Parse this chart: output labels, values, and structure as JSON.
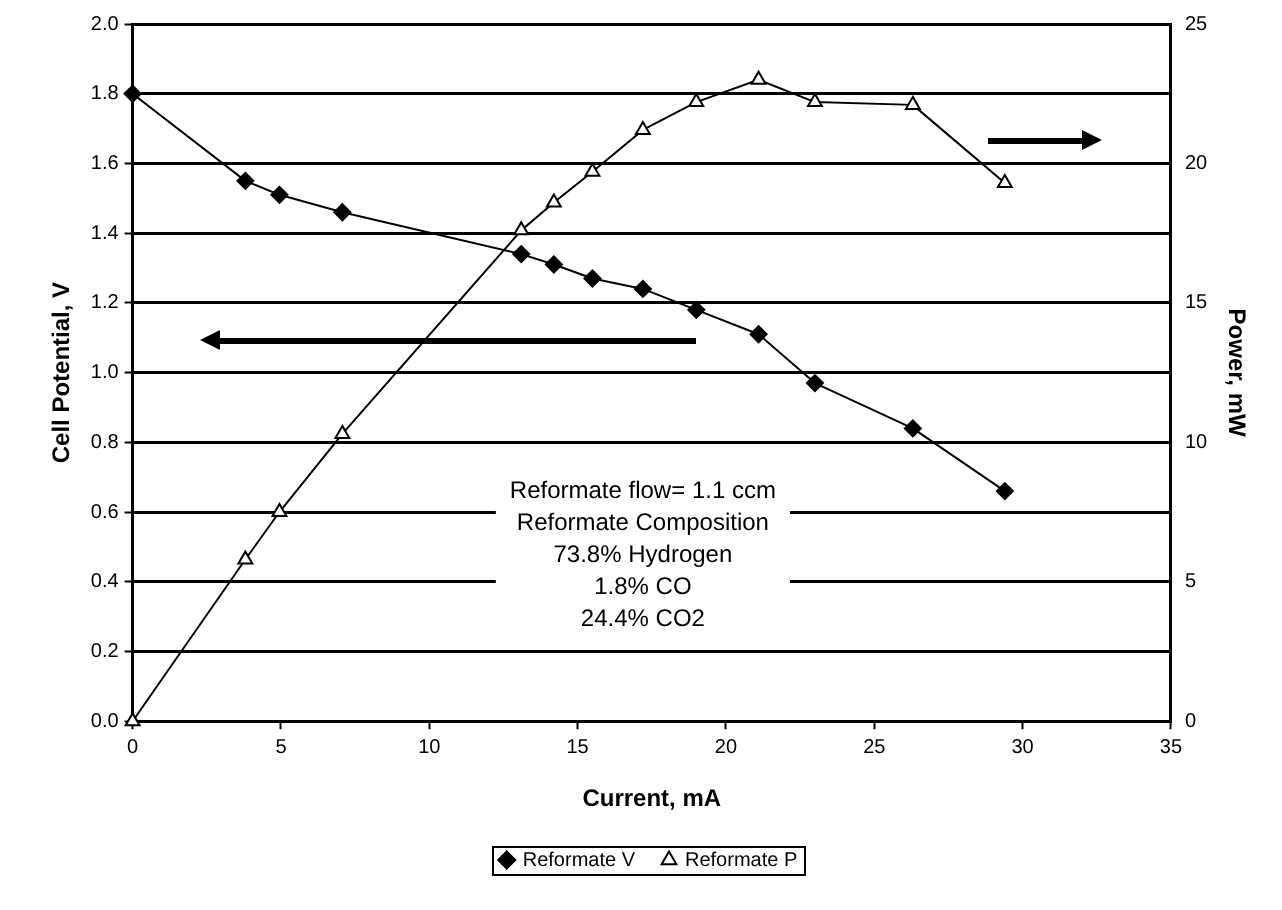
{
  "chart_data": {
    "type": "line",
    "xlabel": "Current, mA",
    "ylabel": "Cell Potential, V",
    "y2label": "Power, mW",
    "xlim": [
      0,
      35
    ],
    "xticks": [
      0,
      5,
      10,
      15,
      20,
      25,
      30,
      35
    ],
    "ylim": [
      0,
      2
    ],
    "yticks": [
      {
        "value": 0,
        "label": "0.0"
      },
      0.2,
      0.4,
      0.6,
      0.8,
      {
        "value": 1,
        "label": "1.0"
      },
      1.2,
      1.4,
      1.6,
      1.8,
      {
        "value": 2,
        "label": "2.0"
      }
    ],
    "y2lim": [
      0,
      25
    ],
    "y2ticks": [
      0,
      5,
      10,
      15,
      20,
      25
    ],
    "grid": "y",
    "legend": "bottom",
    "series": [
      {
        "name": "Reformate V",
        "color": "#000000",
        "marker": "diamond",
        "x": [
          0,
          3.8,
          4.95,
          7.07,
          13.1,
          14.2,
          15.5,
          17.2,
          19.0,
          21.1,
          23.0,
          26.3,
          29.4
        ],
        "values": [
          1.8,
          1.55,
          1.51,
          1.46,
          1.34,
          1.31,
          1.27,
          1.24,
          1.18,
          1.11,
          0.97,
          0.84,
          0.66
        ]
      },
      {
        "name": "Reformate P",
        "color": "#000000",
        "marker": "triangle",
        "axis": "y2",
        "x": [
          0,
          3.8,
          4.95,
          7.07,
          13.1,
          14.2,
          15.5,
          17.2,
          19.0,
          21.1,
          23.0,
          26.3,
          29.4
        ],
        "values": [
          0,
          5.8,
          7.5,
          10.3,
          17.6,
          18.6,
          19.7,
          21.2,
          22.2,
          23.0,
          22.2,
          22.1,
          19.3
        ]
      }
    ],
    "annotations": [
      "Reformate flow= 1.1 ccm",
      "Reformate Composition",
      "73.8% Hydrogen",
      "1.8% CO",
      "24.4% CO2"
    ]
  }
}
